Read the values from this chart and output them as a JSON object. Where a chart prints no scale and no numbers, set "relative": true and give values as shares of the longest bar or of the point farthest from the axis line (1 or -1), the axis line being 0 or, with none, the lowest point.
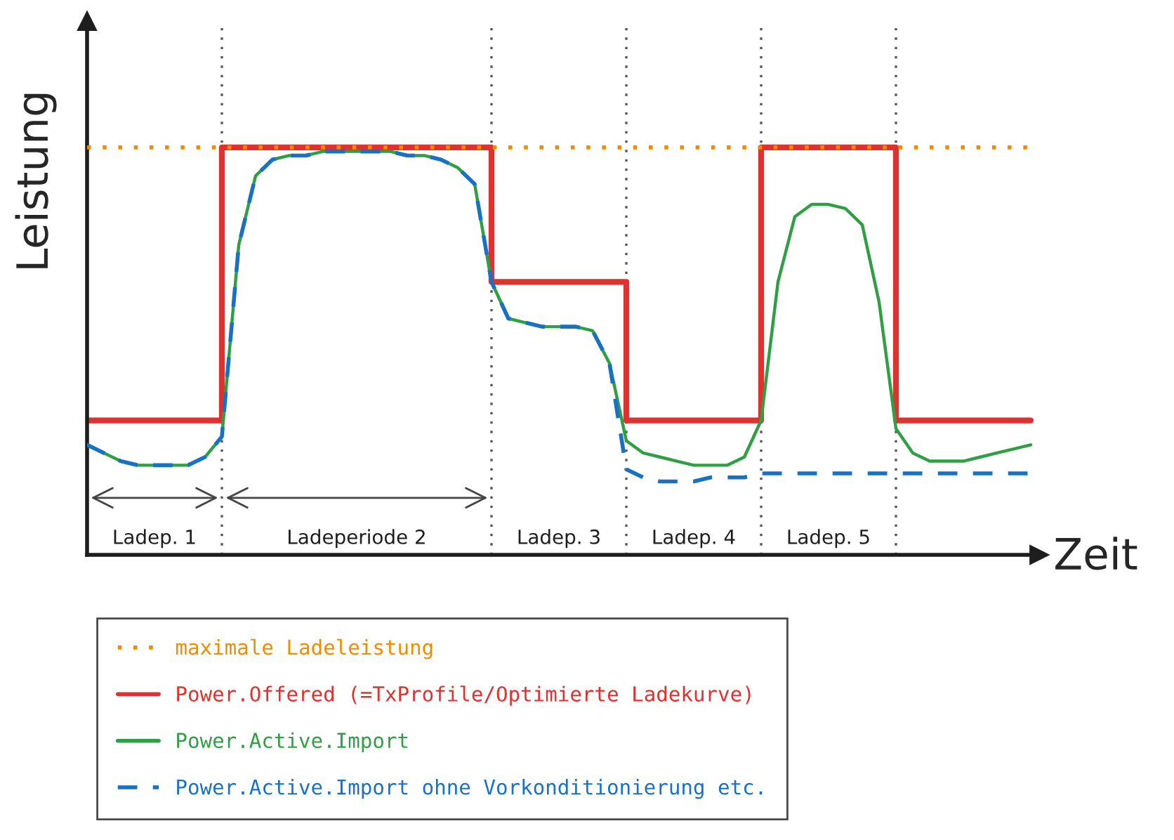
{
  "chart_data": {
    "type": "line",
    "relative": true,
    "xlabel": "Zeit",
    "ylabel": "Leistung",
    "legend": "bottom",
    "grid": "x",
    "marker": "none",
    "categories": [
      null,
      null,
      null,
      null,
      null,
      null,
      null,
      null,
      null,
      null,
      null,
      null,
      null,
      null,
      null,
      null,
      null,
      null,
      null,
      null,
      null,
      null,
      null,
      null,
      null,
      null,
      null,
      null,
      null,
      null,
      null,
      null,
      null,
      null,
      null,
      null,
      null,
      null,
      null,
      null,
      null,
      null,
      null,
      null,
      null,
      null,
      null,
      null,
      null,
      null,
      null,
      null,
      null,
      null,
      null,
      null,
      null
    ],
    "series": [
      {
        "name": "maximale Ladeleistung",
        "color": "#f08c00",
        "line_style": "dotted",
        "values": [
          1,
          1,
          1,
          1,
          1,
          1,
          1,
          1,
          1,
          1,
          1,
          1,
          1,
          1,
          1,
          1,
          1,
          1,
          1,
          1,
          1,
          1,
          1,
          1,
          1,
          1,
          1,
          1,
          1,
          1,
          1,
          1,
          1,
          1,
          1,
          1,
          1,
          1,
          1,
          1,
          1,
          1,
          1,
          1,
          1,
          1,
          1,
          1,
          1,
          1,
          1,
          1,
          1,
          1,
          1,
          1,
          1
        ]
      },
      {
        "name": "Power.Offered (=TxProfile/Optimierte Ladekurve)",
        "type": "step",
        "color": "#e03131",
        "line_style": "solid",
        "values": [
          0.33,
          0.33,
          0.33,
          0.33,
          0.33,
          0.33,
          0.33,
          0.33,
          1,
          1,
          1,
          1,
          1,
          1,
          1,
          1,
          1,
          1,
          1,
          1,
          1,
          1,
          1,
          1,
          0.67,
          0.67,
          0.67,
          0.67,
          0.67,
          0.67,
          0.67,
          0.67,
          0.33,
          0.33,
          0.33,
          0.33,
          0.33,
          0.33,
          0.33,
          0.33,
          1,
          1,
          1,
          1,
          1,
          1,
          1,
          1,
          0.33,
          0.33,
          0.33,
          0.33,
          0.33,
          0.33,
          0.33,
          0.33,
          0.33
        ]
      },
      {
        "name": "Power.Active.Import",
        "color": "#2f9e44",
        "line_style": "solid",
        "values": [
          0.27,
          0.25,
          0.23,
          0.22,
          0.22,
          0.22,
          0.22,
          0.24,
          0.29,
          0.76,
          0.93,
          0.97,
          0.98,
          0.98,
          0.99,
          0.99,
          0.99,
          0.99,
          0.99,
          0.98,
          0.98,
          0.97,
          0.95,
          0.91,
          0.67,
          0.58,
          0.57,
          0.56,
          0.56,
          0.56,
          0.55,
          0.47,
          0.28,
          0.25,
          0.24,
          0.23,
          0.22,
          0.22,
          0.22,
          0.24,
          0.33,
          0.67,
          0.83,
          0.86,
          0.86,
          0.85,
          0.81,
          0.62,
          0.31,
          0.25,
          0.23,
          0.23,
          0.23,
          0.24,
          0.25,
          0.26,
          0.27
        ]
      },
      {
        "name": "Power.Active.Import ohne Vorkonditionierung etc.",
        "color": "#1971c2",
        "line_style": "dashed",
        "values": [
          0.27,
          0.25,
          0.23,
          0.22,
          0.22,
          0.22,
          0.22,
          0.24,
          0.29,
          0.76,
          0.93,
          0.97,
          0.98,
          0.98,
          0.99,
          0.99,
          0.99,
          0.99,
          0.99,
          0.98,
          0.98,
          0.97,
          0.95,
          0.91,
          0.67,
          0.58,
          0.57,
          0.56,
          0.56,
          0.56,
          0.55,
          0.47,
          0.21,
          0.19,
          0.18,
          0.18,
          0.18,
          0.19,
          0.19,
          0.19,
          0.2,
          0.2,
          0.2,
          0.2,
          0.2,
          0.2,
          0.2,
          0.2,
          0.2,
          0.2,
          0.2,
          0.2,
          0.2,
          0.2,
          0.2,
          0.2,
          0.2
        ]
      }
    ],
    "annotations": [
      "Ladep. 1",
      "Ladeperiode 2",
      "Ladep. 3",
      "Ladep. 4",
      "Ladep. 5"
    ]
  }
}
